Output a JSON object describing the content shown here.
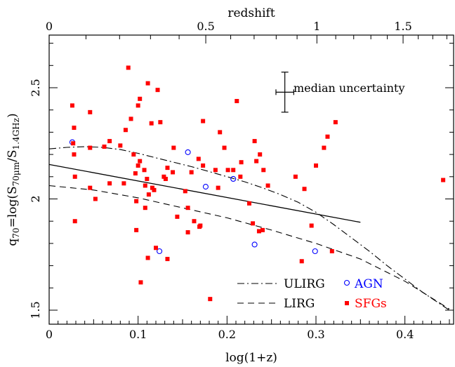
{
  "chart_data": {
    "type": "scatter",
    "xlabel": "log(1+z)",
    "x2label": "redshift",
    "xlim": [
      0,
      0.45
    ],
    "ylim": [
      1.45,
      2.7
    ],
    "x_ticks": [
      "0",
      "0.1",
      "0.2",
      "0.3",
      "0.4"
    ],
    "x_tick_values": [
      0,
      0.1,
      0.2,
      0.3,
      0.4
    ],
    "x2_ticks": [
      "0",
      "0.5",
      "1",
      "1.5"
    ],
    "x2_tick_values": [
      0,
      0.5,
      1,
      1.5
    ],
    "y_ticks": [
      "1.5",
      "2",
      "2.5"
    ],
    "y_tick_values": [
      1.5,
      2.0,
      2.5
    ],
    "annotation": "median uncertainty",
    "error_bar": {
      "x": 0.265,
      "y": 2.48,
      "dx": 0.01,
      "dy": 0.09
    },
    "fit_line": {
      "x": [
        0,
        0.35
      ],
      "y": [
        2.155,
        1.895
      ]
    },
    "series": [
      {
        "name": "ULIRG",
        "style": "dashdot",
        "x": [
          0,
          0.02,
          0.04,
          0.06,
          0.08,
          0.1,
          0.12,
          0.14,
          0.16,
          0.18,
          0.2,
          0.22,
          0.24,
          0.26,
          0.28,
          0.3,
          0.32,
          0.34,
          0.36,
          0.38,
          0.4,
          0.42,
          0.45
        ],
        "y": [
          2.225,
          2.232,
          2.235,
          2.232,
          2.222,
          2.205,
          2.185,
          2.165,
          2.145,
          2.123,
          2.1,
          2.077,
          2.05,
          2.02,
          1.985,
          1.94,
          1.885,
          1.825,
          1.765,
          1.7,
          1.64,
          1.58,
          1.5
        ]
      },
      {
        "name": "LIRG",
        "style": "dashed",
        "x": [
          0,
          0.05,
          0.1,
          0.15,
          0.2,
          0.25,
          0.3,
          0.35,
          0.4,
          0.45
        ],
        "y": [
          2.06,
          2.04,
          2.005,
          1.96,
          1.915,
          1.86,
          1.8,
          1.73,
          1.63,
          1.505
        ]
      },
      {
        "name": "AGN",
        "style": "open-circle",
        "color": "#0000ff",
        "points": [
          [
            0.026,
            2.255
          ],
          [
            0.124,
            1.765
          ],
          [
            0.156,
            2.21
          ],
          [
            0.176,
            2.055
          ],
          [
            0.207,
            2.09
          ],
          [
            0.231,
            1.795
          ],
          [
            0.299,
            1.765
          ]
        ]
      },
      {
        "name": "SFGs",
        "style": "filled-square",
        "color": "#ff0000",
        "points": [
          [
            0.026,
            2.42
          ],
          [
            0.027,
            2.25
          ],
          [
            0.028,
            2.32
          ],
          [
            0.028,
            2.2
          ],
          [
            0.029,
            2.1
          ],
          [
            0.029,
            1.9
          ],
          [
            0.046,
            2.39
          ],
          [
            0.046,
            2.23
          ],
          [
            0.046,
            2.05
          ],
          [
            0.052,
            2.0
          ],
          [
            0.062,
            2.235
          ],
          [
            0.068,
            2.07
          ],
          [
            0.068,
            2.26
          ],
          [
            0.08,
            2.24
          ],
          [
            0.084,
            2.07
          ],
          [
            0.086,
            2.31
          ],
          [
            0.089,
            2.59
          ],
          [
            0.092,
            2.36
          ],
          [
            0.095,
            2.2
          ],
          [
            0.097,
            2.115
          ],
          [
            0.098,
            1.99
          ],
          [
            0.098,
            1.86
          ],
          [
            0.1,
            2.15
          ],
          [
            0.1,
            2.42
          ],
          [
            0.102,
            2.45
          ],
          [
            0.102,
            2.17
          ],
          [
            0.103,
            1.625
          ],
          [
            0.107,
            2.13
          ],
          [
            0.108,
            2.06
          ],
          [
            0.108,
            1.96
          ],
          [
            0.11,
            2.09
          ],
          [
            0.111,
            2.52
          ],
          [
            0.111,
            1.735
          ],
          [
            0.112,
            2.02
          ],
          [
            0.115,
            2.34
          ],
          [
            0.116,
            2.05
          ],
          [
            0.118,
            2.04
          ],
          [
            0.12,
            1.78
          ],
          [
            0.122,
            2.49
          ],
          [
            0.125,
            2.345
          ],
          [
            0.129,
            2.1
          ],
          [
            0.131,
            2.09
          ],
          [
            0.133,
            2.14
          ],
          [
            0.133,
            1.73
          ],
          [
            0.139,
            2.12
          ],
          [
            0.14,
            2.23
          ],
          [
            0.144,
            1.92
          ],
          [
            0.153,
            2.035
          ],
          [
            0.156,
            1.85
          ],
          [
            0.156,
            1.96
          ],
          [
            0.16,
            2.12
          ],
          [
            0.163,
            1.9
          ],
          [
            0.168,
            2.18
          ],
          [
            0.169,
            1.875
          ],
          [
            0.17,
            1.88
          ],
          [
            0.173,
            2.35
          ],
          [
            0.173,
            2.15
          ],
          [
            0.181,
            1.55
          ],
          [
            0.187,
            2.13
          ],
          [
            0.19,
            2.05
          ],
          [
            0.192,
            2.3
          ],
          [
            0.197,
            2.23
          ],
          [
            0.201,
            2.13
          ],
          [
            0.207,
            2.13
          ],
          [
            0.211,
            2.44
          ],
          [
            0.215,
            2.1
          ],
          [
            0.216,
            2.165
          ],
          [
            0.225,
            1.98
          ],
          [
            0.229,
            1.89
          ],
          [
            0.231,
            2.26
          ],
          [
            0.233,
            2.17
          ],
          [
            0.236,
            1.855
          ],
          [
            0.237,
            2.2
          ],
          [
            0.24,
            1.86
          ],
          [
            0.241,
            2.13
          ],
          [
            0.246,
            2.06
          ],
          [
            0.277,
            2.1
          ],
          [
            0.284,
            1.72
          ],
          [
            0.287,
            2.045
          ],
          [
            0.295,
            1.88
          ],
          [
            0.3,
            2.15
          ],
          [
            0.309,
            2.23
          ],
          [
            0.313,
            2.28
          ],
          [
            0.322,
            2.345
          ],
          [
            0.318,
            1.765
          ],
          [
            0.443,
            2.085
          ]
        ]
      }
    ]
  }
}
